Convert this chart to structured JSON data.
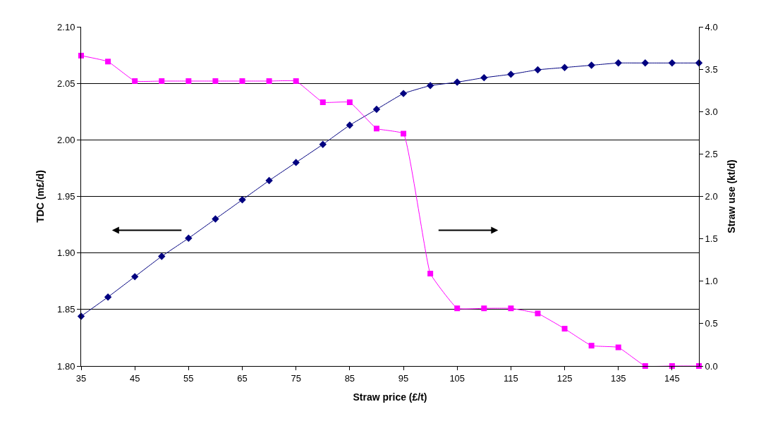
{
  "chart_data": {
    "type": "line",
    "xlabel": "Straw price (£/t)",
    "ylabel": "TDC (m£/d)",
    "y2label": "Straw use (kt/d)",
    "x": [
      35,
      40,
      45,
      50,
      55,
      60,
      65,
      70,
      75,
      80,
      85,
      90,
      95,
      100,
      105,
      110,
      115,
      120,
      125,
      130,
      135,
      140,
      145,
      150
    ],
    "series": [
      {
        "color": "#000080",
        "marker": "diamond",
        "values": [
          1.844,
          1.861,
          1.879,
          1.897,
          1.913,
          1.93,
          1.947,
          1.964,
          1.98,
          1.996,
          2.013,
          2.027,
          2.041,
          2.048,
          2.051,
          2.055,
          2.058,
          2.062,
          2.064,
          2.066,
          2.068,
          2.068,
          2.068,
          2.068
        ]
      },
      {
        "color": "#ff00ff",
        "marker": "square",
        "axis": "y2",
        "values": [
          3.66,
          3.59,
          3.36,
          3.36,
          3.36,
          3.36,
          3.36,
          3.36,
          3.36,
          3.11,
          3.11,
          2.8,
          2.74,
          1.09,
          0.68,
          0.68,
          0.68,
          0.62,
          0.44,
          0.24,
          0.22,
          0,
          0,
          0
        ]
      }
    ],
    "xlim": [
      35,
      150
    ],
    "xticks": [
      35,
      45,
      55,
      65,
      75,
      85,
      95,
      105,
      115,
      125,
      135,
      145
    ],
    "ylim": [
      1.8,
      2.1
    ],
    "yticks": [
      {
        "value": 1.8,
        "label": "1.80"
      },
      {
        "value": 1.85,
        "label": "1.85"
      },
      {
        "value": 1.9,
        "label": "1.90"
      },
      {
        "value": 1.95,
        "label": "1.95"
      },
      {
        "value": 2.0,
        "label": "2.00"
      },
      {
        "value": 2.05,
        "label": "2.05"
      },
      {
        "value": 2.1,
        "label": "2.10"
      }
    ],
    "y2lim": [
      0,
      4
    ],
    "y2ticks": [
      {
        "value": 0,
        "label": "0.0"
      },
      {
        "value": 0.5,
        "label": "0.5"
      },
      {
        "value": 1,
        "label": "1.0"
      },
      {
        "value": 1.5,
        "label": "1.5"
      },
      {
        "value": 2,
        "label": "2.0"
      },
      {
        "value": 2.5,
        "label": "2.5"
      },
      {
        "value": 3,
        "label": "3.0"
      },
      {
        "value": 3.5,
        "label": "3.5"
      },
      {
        "value": 4,
        "label": "4.0"
      }
    ],
    "grid": "y",
    "legend": false
  }
}
